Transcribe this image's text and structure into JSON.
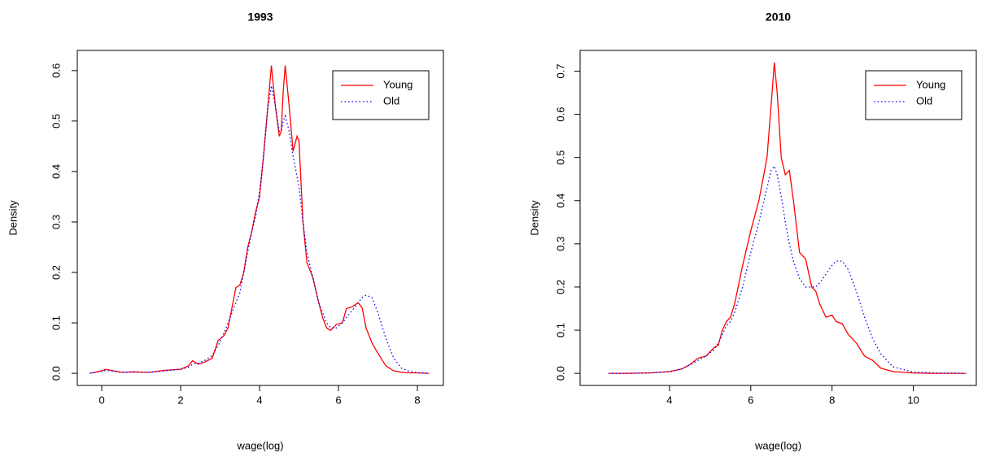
{
  "chart_data": [
    {
      "type": "line",
      "title": "1993",
      "x_label": "wage(log)",
      "y_label": "Density",
      "x": [
        -0.3,
        0,
        0.1,
        0.3,
        0.5,
        0.8,
        1.2,
        1.6,
        2.0,
        2.2,
        2.3,
        2.45,
        2.6,
        2.8,
        2.95,
        3.1,
        3.2,
        3.3,
        3.4,
        3.5,
        3.6,
        3.7,
        3.8,
        3.9,
        4.0,
        4.1,
        4.2,
        4.3,
        4.4,
        4.5,
        4.55,
        4.6,
        4.65,
        4.75,
        4.85,
        4.95,
        5.0,
        5.1,
        5.2,
        5.35,
        5.5,
        5.6,
        5.7,
        5.8,
        5.95,
        6.1,
        6.2,
        6.35,
        6.5,
        6.6,
        6.7,
        6.85,
        7.0,
        7.2,
        7.4,
        7.6,
        7.8,
        8.0,
        8.3
      ],
      "series": [
        {
          "name": "Young",
          "color": "#ff0000",
          "dash": "solid",
          "values": [
            0,
            0.005,
            0.008,
            0.005,
            0.002,
            0.003,
            0.002,
            0.006,
            0.008,
            0.015,
            0.025,
            0.018,
            0.022,
            0.03,
            0.065,
            0.075,
            0.09,
            0.13,
            0.17,
            0.175,
            0.2,
            0.25,
            0.28,
            0.32,
            0.35,
            0.43,
            0.52,
            0.61,
            0.53,
            0.47,
            0.48,
            0.56,
            0.61,
            0.53,
            0.44,
            0.47,
            0.46,
            0.3,
            0.22,
            0.19,
            0.14,
            0.11,
            0.09,
            0.085,
            0.097,
            0.1,
            0.128,
            0.132,
            0.14,
            0.13,
            0.09,
            0.06,
            0.04,
            0.015,
            0.005,
            0.002,
            0.001,
            0.001,
            0
          ]
        },
        {
          "name": "Old",
          "color": "#0000ff",
          "dash": "dotted",
          "values": [
            0,
            0.004,
            0.006,
            0.004,
            0.002,
            0.002,
            0.002,
            0.005,
            0.008,
            0.012,
            0.018,
            0.02,
            0.025,
            0.035,
            0.055,
            0.08,
            0.1,
            0.12,
            0.14,
            0.16,
            0.2,
            0.24,
            0.28,
            0.31,
            0.36,
            0.43,
            0.52,
            0.57,
            0.53,
            0.48,
            0.48,
            0.5,
            0.51,
            0.48,
            0.43,
            0.39,
            0.37,
            0.3,
            0.24,
            0.19,
            0.14,
            0.12,
            0.1,
            0.09,
            0.09,
            0.1,
            0.11,
            0.125,
            0.14,
            0.15,
            0.155,
            0.15,
            0.12,
            0.07,
            0.03,
            0.01,
            0.004,
            0.001,
            0
          ]
        }
      ],
      "xlim": [
        -0.62,
        8.66
      ],
      "ylim": [
        -0.024,
        0.64
      ],
      "xticks": [
        0,
        2,
        4,
        6,
        8
      ],
      "yticks": [
        {
          "value": 0,
          "label": "0.0"
        },
        0.1,
        0.2,
        0.3,
        0.4,
        0.5,
        0.6
      ],
      "legend": "top-right"
    },
    {
      "type": "line",
      "title": "2010",
      "x_label": "wage(log)",
      "y_label": "Density",
      "x": [
        2.5,
        3.0,
        3.5,
        4.0,
        4.3,
        4.5,
        4.7,
        4.9,
        5.1,
        5.2,
        5.3,
        5.4,
        5.5,
        5.6,
        5.8,
        6.0,
        6.2,
        6.4,
        6.5,
        6.58,
        6.65,
        6.75,
        6.85,
        6.95,
        7.05,
        7.2,
        7.35,
        7.5,
        7.6,
        7.7,
        7.85,
        8.0,
        8.1,
        8.25,
        8.4,
        8.6,
        8.8,
        9.0,
        9.2,
        9.5,
        10.0,
        10.5,
        11.3
      ],
      "series": [
        {
          "name": "Young",
          "color": "#ff0000",
          "dash": "solid",
          "values": [
            0,
            0,
            0.001,
            0.004,
            0.01,
            0.02,
            0.035,
            0.04,
            0.06,
            0.065,
            0.1,
            0.12,
            0.13,
            0.16,
            0.25,
            0.33,
            0.4,
            0.5,
            0.62,
            0.72,
            0.65,
            0.5,
            0.46,
            0.47,
            0.4,
            0.28,
            0.265,
            0.2,
            0.19,
            0.16,
            0.13,
            0.135,
            0.12,
            0.115,
            0.09,
            0.07,
            0.04,
            0.03,
            0.012,
            0.004,
            0.001,
            0,
            0
          ]
        },
        {
          "name": "Old",
          "color": "#0000ff",
          "dash": "dotted",
          "values": [
            0,
            0,
            0.001,
            0.004,
            0.01,
            0.02,
            0.03,
            0.04,
            0.055,
            0.07,
            0.09,
            0.11,
            0.12,
            0.14,
            0.2,
            0.28,
            0.35,
            0.43,
            0.47,
            0.48,
            0.46,
            0.41,
            0.35,
            0.3,
            0.26,
            0.22,
            0.2,
            0.2,
            0.2,
            0.21,
            0.23,
            0.25,
            0.26,
            0.26,
            0.24,
            0.19,
            0.13,
            0.08,
            0.045,
            0.015,
            0.003,
            0.001,
            0
          ]
        }
      ],
      "xlim": [
        1.8,
        11.55
      ],
      "ylim": [
        -0.028,
        0.748
      ],
      "xticks": [
        4,
        6,
        8,
        10
      ],
      "yticks": [
        {
          "value": 0,
          "label": "0.0"
        },
        0.1,
        0.2,
        0.3,
        0.4,
        0.5,
        0.6,
        0.7
      ],
      "legend": "top-right"
    }
  ]
}
